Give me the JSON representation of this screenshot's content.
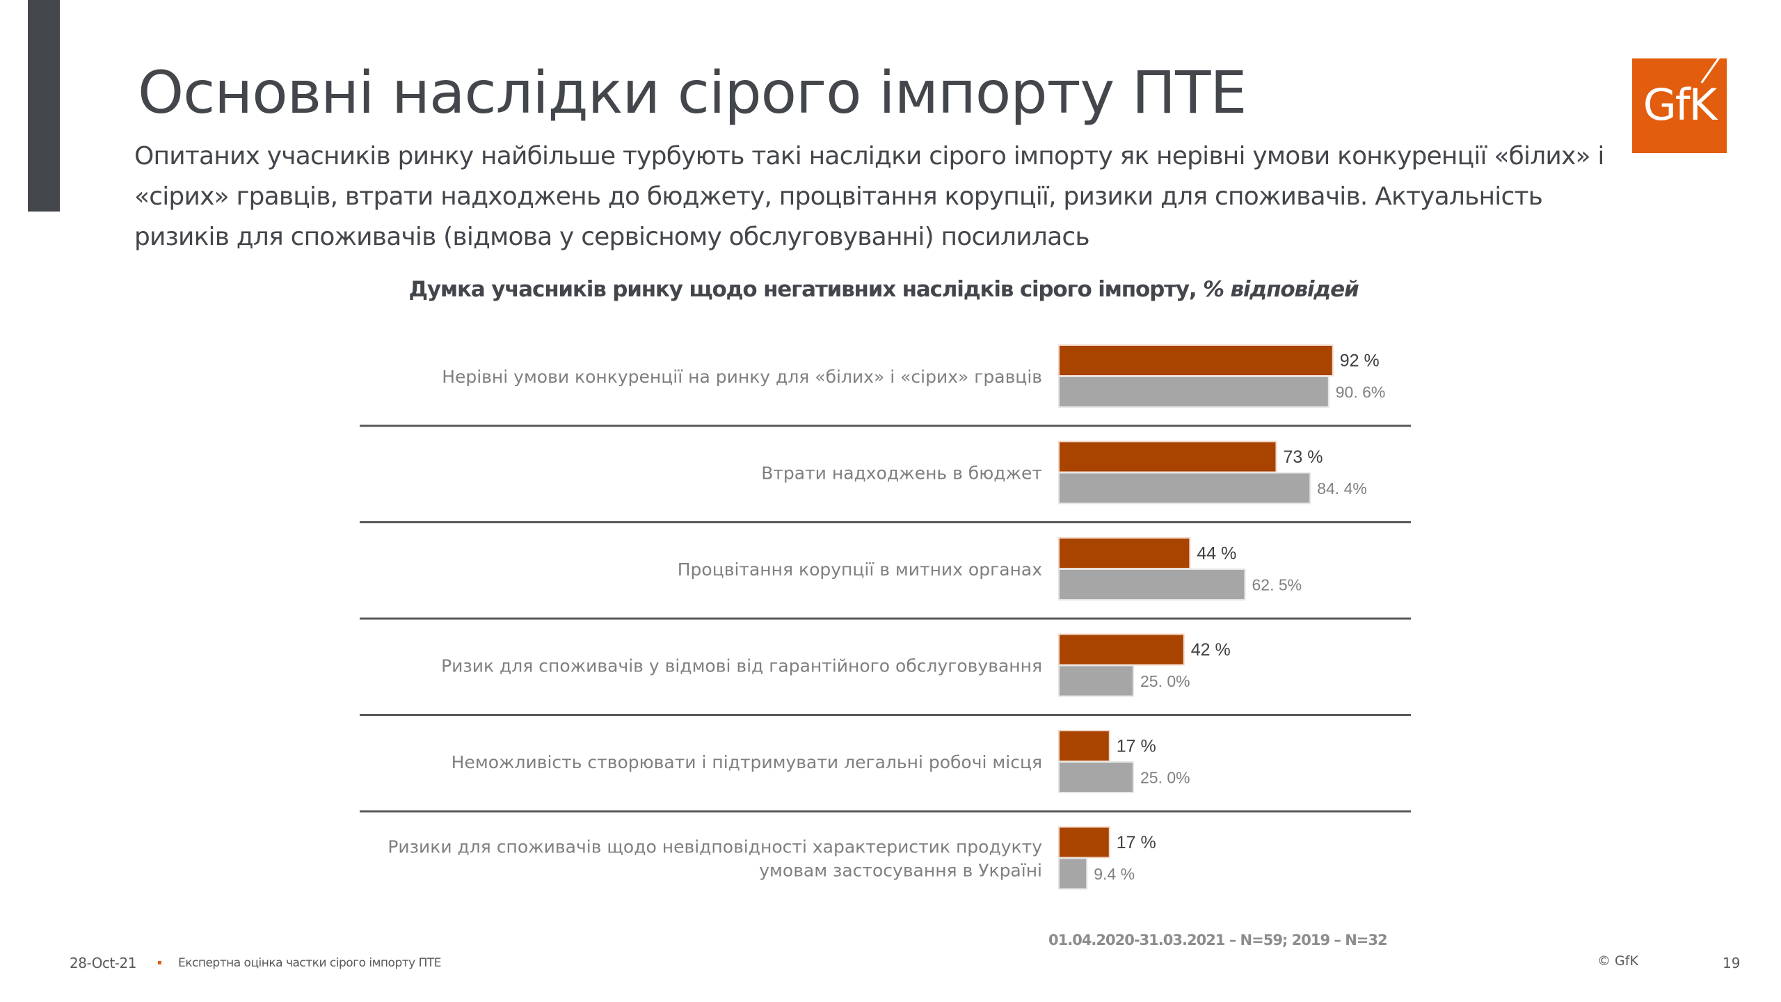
{
  "header": {
    "title": "Основні наслідки сірого імпорту ПТЕ",
    "subtitle": "Опитаних учасників ринку найбільше турбують такі наслідки сірого імпорту як нерівні умови конкуренції «білих» і «сірих» гравців, втрати надходжень до бюджету, процвітання корупції, ризики для споживачів. Актуальність ризиків для споживачів (відмова у сервісному обслуговуванні) посилилась",
    "logo_text": "GfK"
  },
  "colors": {
    "series_2020": "#a84300",
    "series_2019": "#a6a6a6",
    "accent": "#e35d0f",
    "dark_bar": "#43464b"
  },
  "chart_data": {
    "type": "bar",
    "orientation": "horizontal",
    "title": "Думка учасників ринку щодо негативних наслідків сірого імпорту,",
    "title_italic": "% відповідей",
    "xlabel": "",
    "ylabel": "",
    "xlim": [
      0,
      100
    ],
    "grid": false,
    "categories": [
      "Нерівні умови конкуренції на ринку для «білих» і «сірих» гравців",
      "Втрати надходжень в бюджет",
      "Процвітання корупції в митних органах",
      "Ризик для споживачів у відмові від гарантійного обслуговування",
      "Неможливість створювати і підтримувати легальні робочі місця",
      "Ризики для споживачів щодо невідповідності характеристик продукту умовам застосування в Україні"
    ],
    "series": [
      {
        "name": "01.04.2020-31.03.2021",
        "values": [
          92,
          73,
          44,
          42,
          17,
          17
        ],
        "labels": [
          "92 %",
          "73 %",
          "44 %",
          "42 %",
          "17 %",
          "17 %"
        ]
      },
      {
        "name": "2019",
        "values": [
          90.6,
          84.4,
          62.5,
          25.0,
          25.0,
          9.4
        ],
        "labels": [
          "90. 6%",
          "84. 4%",
          "62. 5%",
          "25. 0%",
          "25. 0%",
          "9.4 %"
        ]
      }
    ],
    "footnote": "01.04.2020-31.03.2021 – N=59; 2019 – N=32"
  },
  "footer": {
    "date": "28-Oct-21",
    "title": "Експертна оцінка частки сірого імпорту ПТЕ",
    "copyright": "© GfK",
    "page": "19"
  }
}
